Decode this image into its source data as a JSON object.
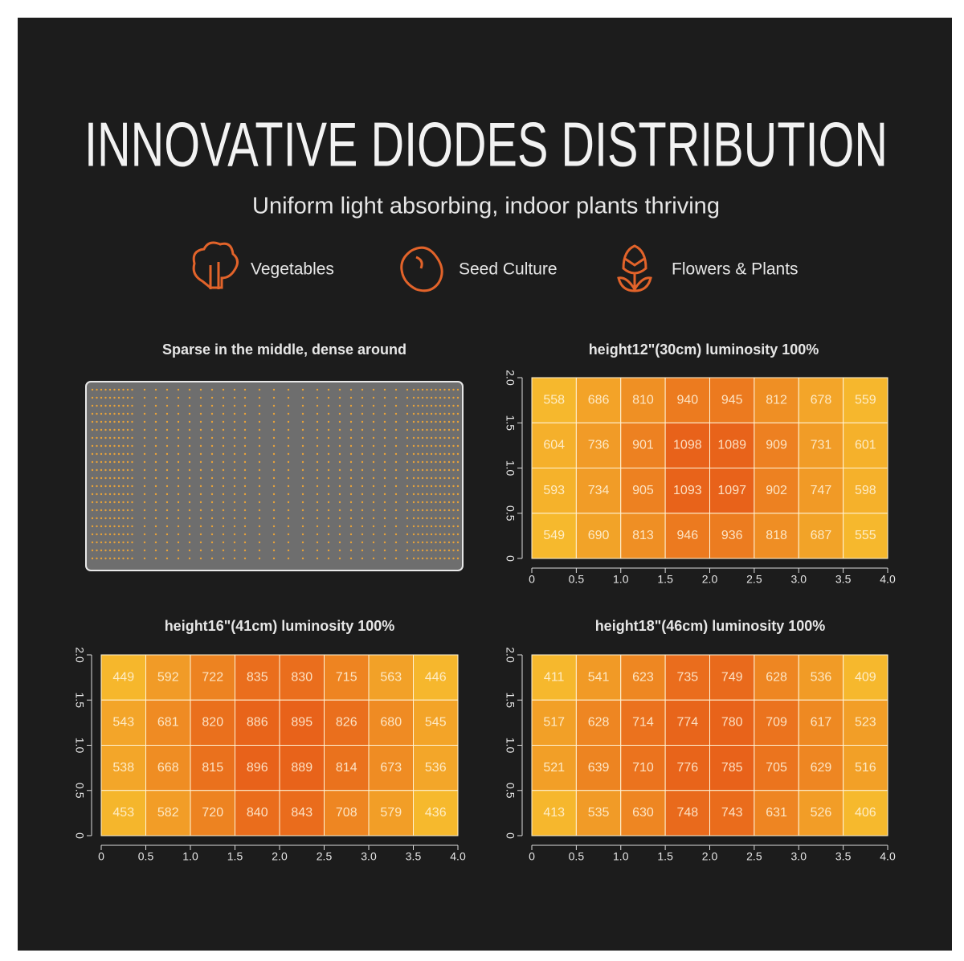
{
  "header": {
    "title": "INNOVATIVE DIODES DISTRIBUTION",
    "subtitle": "Uniform light absorbing, indoor plants thriving",
    "features": [
      "Vegetables",
      "Seed Culture",
      "Flowers & Plants"
    ]
  },
  "diode_panel": {
    "title": "Sparse in the middle, dense around"
  },
  "chart_data": [
    {
      "type": "heatmap",
      "title": "height12\"(30cm)  luminosity 100%",
      "xlim": [
        0,
        4
      ],
      "ylim": [
        0,
        2
      ],
      "xticks": [
        0,
        0.5,
        {
          "value": 1,
          "label": "1.0"
        },
        1.5,
        {
          "value": 2,
          "label": "2.0"
        },
        2.5,
        {
          "value": 3,
          "label": "3.0"
        },
        3.5,
        {
          "value": 4,
          "label": "4.0"
        }
      ],
      "yticks": [
        0,
        0.5,
        {
          "value": 1,
          "label": "1.0"
        },
        1.5,
        {
          "value": 2,
          "label": "2.0"
        }
      ],
      "colormap": [
        "#f6b92d",
        "#e8621a"
      ],
      "values": [
        [
          558,
          686,
          810,
          940,
          945,
          812,
          678,
          559
        ],
        [
          604,
          736,
          901,
          1098,
          1089,
          909,
          731,
          601
        ],
        [
          593,
          734,
          905,
          1093,
          1097,
          902,
          747,
          598
        ],
        [
          549,
          690,
          813,
          946,
          936,
          818,
          687,
          555
        ]
      ]
    },
    {
      "type": "heatmap",
      "title": "height16\"(41cm)  luminosity 100%",
      "xlim": [
        0,
        4
      ],
      "ylim": [
        0,
        2
      ],
      "xticks": [
        0,
        0.5,
        {
          "value": 1,
          "label": "1.0"
        },
        1.5,
        {
          "value": 2,
          "label": "2.0"
        },
        2.5,
        {
          "value": 3,
          "label": "3.0"
        },
        3.5,
        {
          "value": 4,
          "label": "4.0"
        }
      ],
      "yticks": [
        0,
        0.5,
        {
          "value": 1,
          "label": "1.0"
        },
        1.5,
        {
          "value": 2,
          "label": "2.0"
        }
      ],
      "colormap": [
        "#f6b92d",
        "#e8621a"
      ],
      "values": [
        [
          449,
          592,
          722,
          835,
          830,
          715,
          563,
          446
        ],
        [
          543,
          681,
          820,
          886,
          895,
          826,
          680,
          545
        ],
        [
          538,
          668,
          815,
          896,
          889,
          814,
          673,
          536
        ],
        [
          453,
          582,
          720,
          840,
          843,
          708,
          579,
          436
        ]
      ]
    },
    {
      "type": "heatmap",
      "title": "height18\"(46cm)  luminosity 100%",
      "xlim": [
        0,
        4
      ],
      "ylim": [
        0,
        2
      ],
      "xticks": [
        0,
        0.5,
        {
          "value": 1,
          "label": "1.0"
        },
        1.5,
        {
          "value": 2,
          "label": "2.0"
        },
        2.5,
        {
          "value": 3,
          "label": "3.0"
        },
        3.5,
        {
          "value": 4,
          "label": "4.0"
        }
      ],
      "yticks": [
        0,
        0.5,
        {
          "value": 1,
          "label": "1.0"
        },
        1.5,
        {
          "value": 2,
          "label": "2.0"
        }
      ],
      "colormap": [
        "#f6b92d",
        "#e8621a"
      ],
      "values": [
        [
          411,
          541,
          623,
          735,
          749,
          628,
          536,
          409
        ],
        [
          517,
          628,
          714,
          774,
          780,
          709,
          617,
          523
        ],
        [
          521,
          639,
          710,
          776,
          785,
          705,
          629,
          516
        ],
        [
          413,
          535,
          630,
          748,
          743,
          631,
          526,
          406
        ]
      ]
    }
  ]
}
